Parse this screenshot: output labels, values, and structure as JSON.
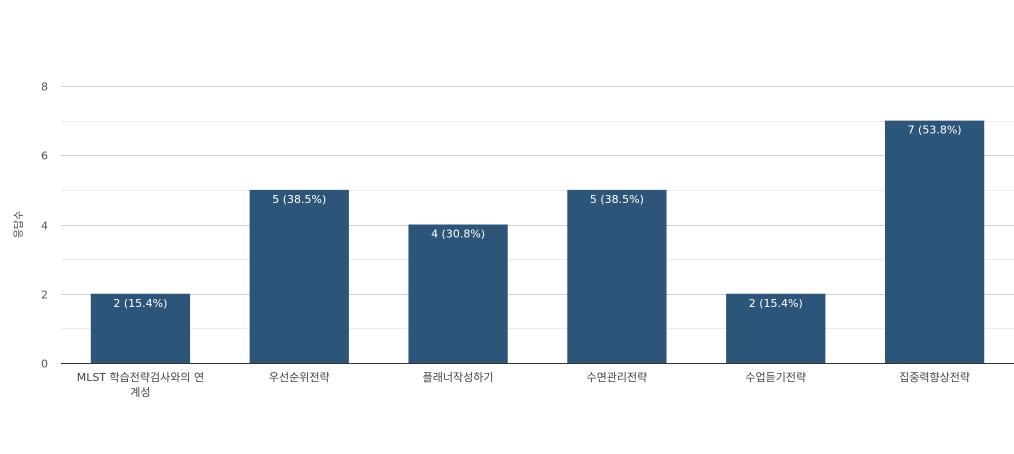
{
  "chart_data": {
    "type": "bar",
    "ylabel": "응답수",
    "ylim": [
      0,
      8
    ],
    "yticks": [
      0,
      2,
      4,
      6,
      8
    ],
    "grid": true,
    "categories": [
      [
        "MLST 학습전략검사와의 연",
        "계성"
      ],
      [
        "우선순위전략"
      ],
      [
        "플래너작성하기"
      ],
      [
        "수면관리전략"
      ],
      [
        "수업듣기전략"
      ],
      [
        "집중력향상전략"
      ]
    ],
    "values": [
      2,
      5,
      4,
      5,
      2,
      7
    ],
    "data_labels": [
      "2 (15.4%)",
      "5 (38.5%)",
      "4 (30.8%)",
      "5 (38.5%)",
      "2 (15.4%)",
      "7 (53.8%)"
    ],
    "bar_color": "#2d5479",
    "label_color": "#ffffff"
  }
}
